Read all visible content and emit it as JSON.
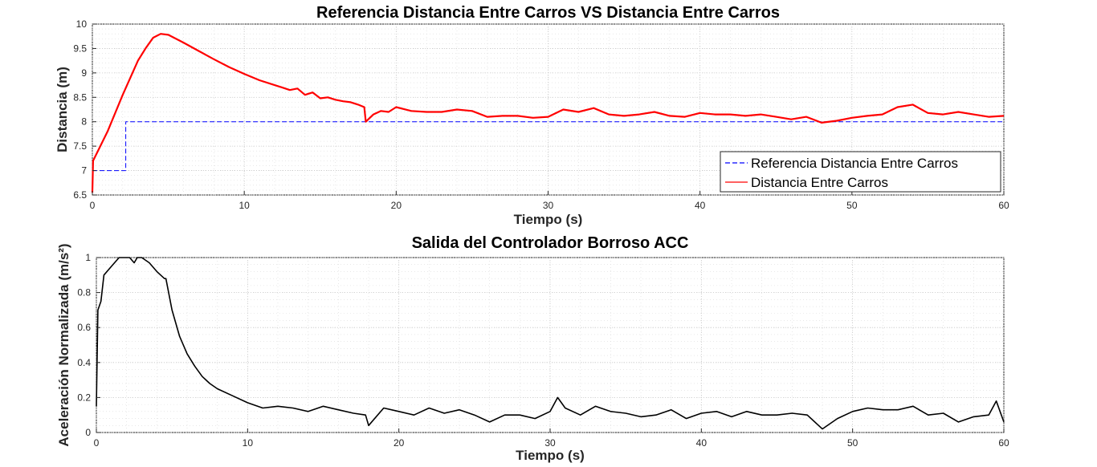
{
  "chart_data": [
    {
      "type": "line",
      "title": "Referencia Distancia Entre Carros VS Distancia Entre Carros",
      "xlabel": "Tiempo (s)",
      "ylabel": "Distancia (m)",
      "xlim": [
        0,
        60
      ],
      "ylim": [
        6.5,
        10
      ],
      "xticks": [
        0,
        10,
        20,
        30,
        40,
        50,
        60
      ],
      "yticks": [
        6.5,
        7,
        7.5,
        8,
        8.5,
        9,
        9.5,
        10
      ],
      "grid": true,
      "legend_position": "bottom-right",
      "series": [
        {
          "name": "Referencia Distancia Entre Carros",
          "color": "#0000ff",
          "style": "dashed",
          "x": [
            0,
            2.2,
            2.2,
            60
          ],
          "y": [
            7.0,
            7.0,
            8.0,
            8.0
          ]
        },
        {
          "name": "Distancia Entre Carros",
          "color": "#ff0000",
          "style": "solid",
          "x": [
            0,
            0.05,
            1,
            2,
            3,
            3.5,
            4,
            4.5,
            5,
            6,
            7,
            8,
            9,
            10,
            11,
            12,
            12.5,
            13,
            13.5,
            14,
            14.5,
            15,
            15.5,
            16,
            16.5,
            17,
            17.5,
            17.9,
            18,
            18.5,
            19,
            19.5,
            20,
            21,
            22,
            23,
            24,
            25,
            26,
            27,
            28,
            29,
            30,
            31,
            32,
            33,
            34,
            35,
            36,
            37,
            38,
            39,
            40,
            41,
            42,
            43,
            44,
            45,
            46,
            47,
            48,
            49,
            50,
            51,
            52,
            53,
            54,
            55,
            56,
            57,
            58,
            59,
            60
          ],
          "y": [
            6.55,
            7.2,
            7.8,
            8.55,
            9.25,
            9.5,
            9.72,
            9.8,
            9.78,
            9.62,
            9.45,
            9.28,
            9.12,
            8.98,
            8.85,
            8.75,
            8.7,
            8.65,
            8.68,
            8.55,
            8.6,
            8.48,
            8.5,
            8.45,
            8.42,
            8.4,
            8.35,
            8.3,
            8.0,
            8.15,
            8.22,
            8.2,
            8.3,
            8.22,
            8.2,
            8.2,
            8.25,
            8.22,
            8.1,
            8.12,
            8.12,
            8.08,
            8.1,
            8.25,
            8.2,
            8.28,
            8.15,
            8.12,
            8.15,
            8.2,
            8.12,
            8.1,
            8.18,
            8.15,
            8.15,
            8.12,
            8.15,
            8.1,
            8.05,
            8.1,
            7.98,
            8.02,
            8.08,
            8.12,
            8.15,
            8.3,
            8.35,
            8.18,
            8.15,
            8.2,
            8.15,
            8.1,
            8.12
          ]
        }
      ]
    },
    {
      "type": "line",
      "title": "Salida del Controlador Borroso ACC",
      "xlabel": "Tiempo (s)",
      "ylabel": "Aceleración Normalizada (m/s²)",
      "xlim": [
        0,
        60
      ],
      "ylim": [
        0,
        1
      ],
      "xticks": [
        0,
        10,
        20,
        30,
        40,
        50,
        60
      ],
      "yticks": [
        0,
        0.2,
        0.4,
        0.6,
        0.8,
        1
      ],
      "grid": true,
      "series": [
        {
          "color": "#000000",
          "style": "solid",
          "x": [
            0,
            0.1,
            0.3,
            0.5,
            1,
            1.5,
            2,
            2.2,
            2.5,
            2.7,
            3,
            3.5,
            4,
            4.5,
            4.6,
            5,
            5.5,
            6,
            6.5,
            7,
            7.5,
            8,
            9,
            10,
            11,
            12,
            13,
            14,
            15,
            16,
            17,
            17.8,
            18,
            19,
            20,
            21,
            22,
            23,
            24,
            25,
            26,
            27,
            28,
            29,
            30,
            30.5,
            31,
            32,
            33,
            34,
            35,
            36,
            37,
            38,
            39,
            40,
            41,
            42,
            43,
            44,
            45,
            46,
            47,
            48,
            49,
            50,
            51,
            52,
            53,
            54,
            55,
            56,
            57,
            58,
            59,
            59.5,
            60
          ],
          "y": [
            0.15,
            0.7,
            0.75,
            0.9,
            0.95,
            1.0,
            1.0,
            1.0,
            0.97,
            1.0,
            1.0,
            0.97,
            0.92,
            0.88,
            0.88,
            0.7,
            0.55,
            0.45,
            0.38,
            0.32,
            0.28,
            0.25,
            0.21,
            0.17,
            0.14,
            0.15,
            0.14,
            0.12,
            0.15,
            0.13,
            0.11,
            0.1,
            0.04,
            0.14,
            0.12,
            0.1,
            0.14,
            0.11,
            0.13,
            0.1,
            0.06,
            0.1,
            0.1,
            0.08,
            0.12,
            0.2,
            0.14,
            0.1,
            0.15,
            0.12,
            0.11,
            0.09,
            0.1,
            0.13,
            0.08,
            0.11,
            0.12,
            0.09,
            0.12,
            0.1,
            0.1,
            0.11,
            0.1,
            0.02,
            0.08,
            0.12,
            0.14,
            0.13,
            0.13,
            0.15,
            0.1,
            0.11,
            0.06,
            0.09,
            0.1,
            0.18,
            0.06
          ]
        }
      ]
    }
  ]
}
